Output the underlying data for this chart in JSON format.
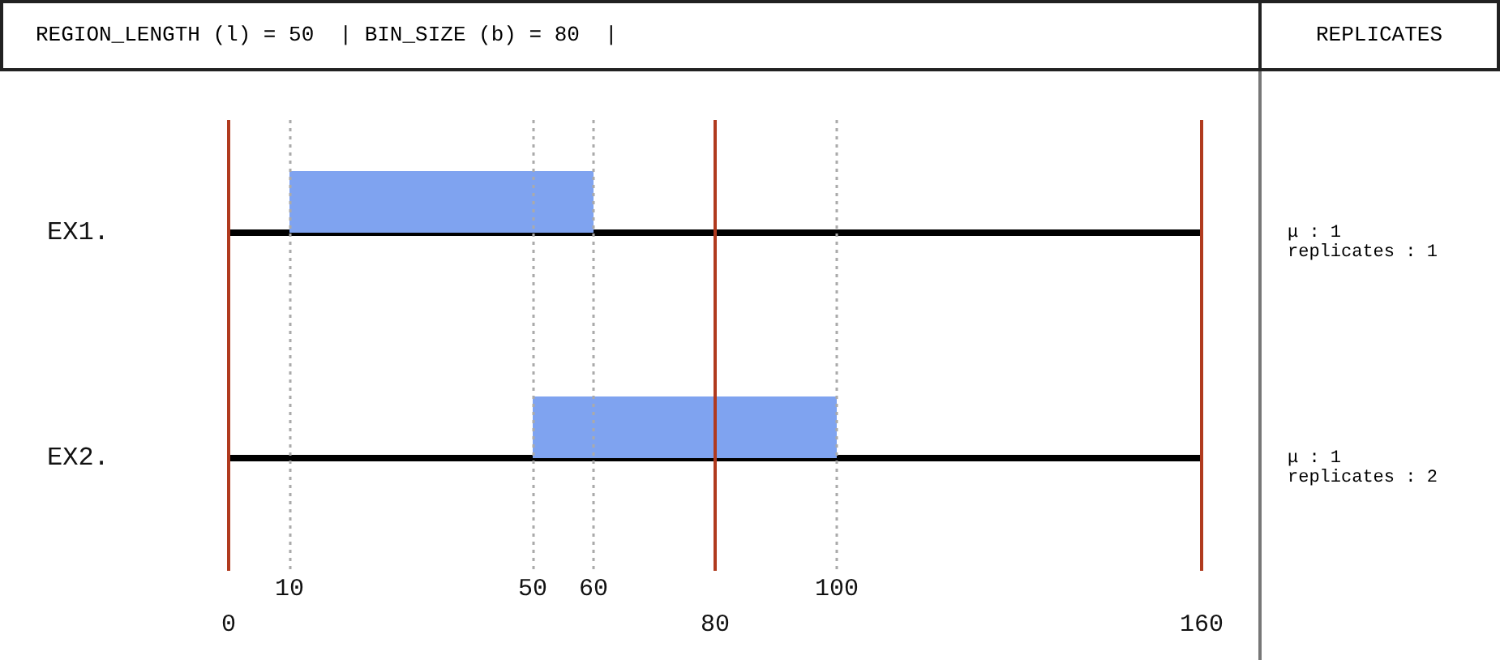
{
  "chart_data": {
    "type": "bar",
    "orientation": "horizontal",
    "title": "REGION_LENGTH (l) = 50  | BIN_SIZE (b) = 80  |",
    "categories": [
      "EX1.",
      "EX2."
    ],
    "series": [
      {
        "color": "#7fa3f0",
        "base": [
          10,
          50
        ],
        "values": [
          50,
          50
        ]
      },
      {
        "color": "#000000",
        "base": [
          0,
          0
        ],
        "values": [
          160,
          160
        ]
      }
    ],
    "xlim": [
      0,
      160
    ],
    "xticks": [
      10,
      50,
      60,
      100
    ],
    "grid": false,
    "ref_lines": [
      {
        "axis": "x",
        "value": 0,
        "label": "0",
        "color": "#b03a1e",
        "line_style": "solid"
      },
      {
        "axis": "x",
        "value": 80,
        "label": "80",
        "color": "#b03a1e",
        "line_style": "solid"
      },
      {
        "axis": "x",
        "value": 160,
        "label": "160",
        "color": "#b03a1e",
        "line_style": "solid"
      },
      {
        "axis": "x",
        "value": 10,
        "color": "#aaaaaa",
        "line_style": "dotted"
      },
      {
        "axis": "x",
        "value": 50,
        "color": "#aaaaaa",
        "line_style": "dotted"
      },
      {
        "axis": "x",
        "value": 60,
        "color": "#aaaaaa",
        "line_style": "dotted"
      },
      {
        "axis": "x",
        "value": 100,
        "color": "#aaaaaa",
        "line_style": "dotted"
      }
    ],
    "annotations": [
      "REPLICATES",
      "μ : 1",
      "replicates : 1",
      "μ : 1",
      "replicates : 2"
    ]
  }
}
